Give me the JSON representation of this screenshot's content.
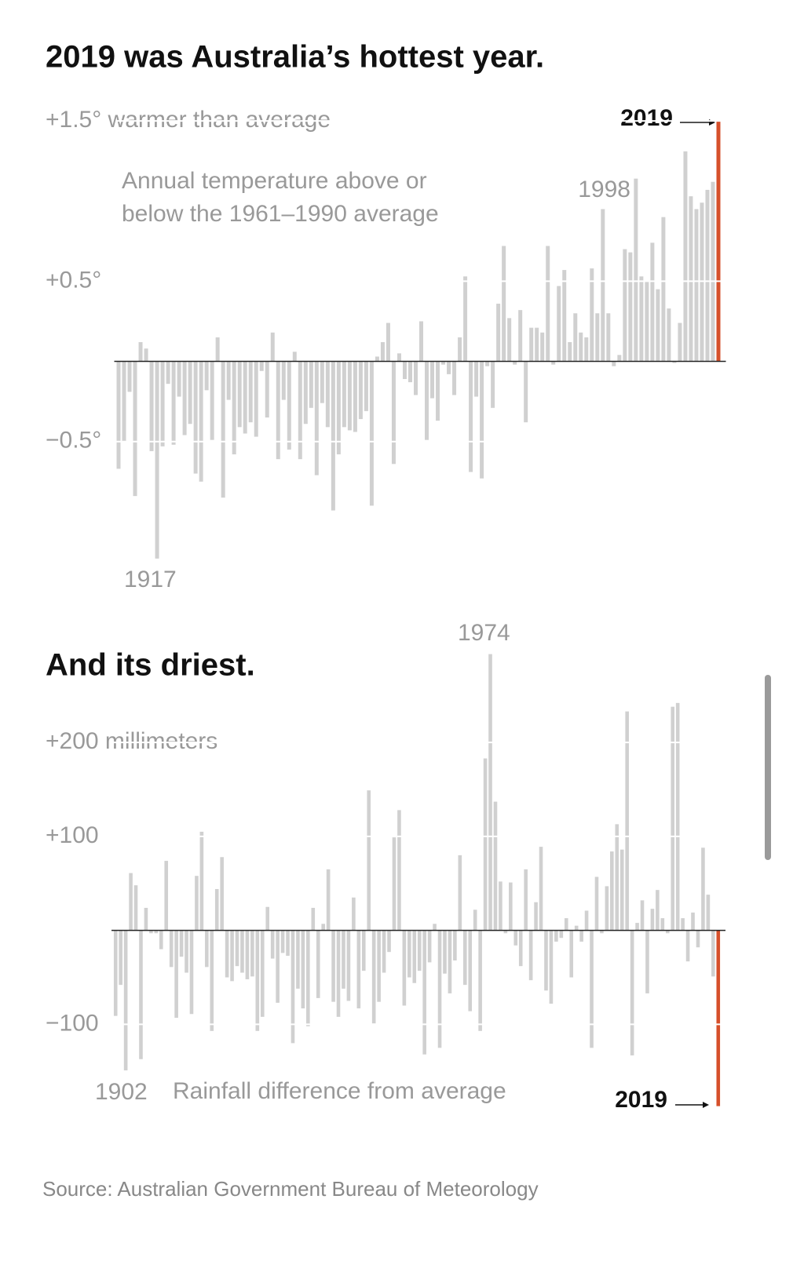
{
  "chart_data": [
    {
      "type": "bar",
      "title": "2019 was Australia’s hottest year.",
      "note": [
        "Annual temperature above or",
        "below the 1961–1990 average"
      ],
      "annotations": [
        "1998",
        "1917"
      ],
      "highlight": {
        "x": 2019,
        "label": "2019",
        "color": "#d6502b"
      },
      "color": "#d0d0d0",
      "x": [
        1910,
        1911,
        1912,
        1913,
        1914,
        1915,
        1916,
        1917,
        1918,
        1919,
        1920,
        1921,
        1922,
        1923,
        1924,
        1925,
        1926,
        1927,
        1928,
        1929,
        1930,
        1931,
        1932,
        1933,
        1934,
        1935,
        1936,
        1937,
        1938,
        1939,
        1940,
        1941,
        1942,
        1943,
        1944,
        1945,
        1946,
        1947,
        1948,
        1949,
        1950,
        1951,
        1952,
        1953,
        1954,
        1955,
        1956,
        1957,
        1958,
        1959,
        1960,
        1961,
        1962,
        1963,
        1964,
        1965,
        1966,
        1967,
        1968,
        1969,
        1970,
        1971,
        1972,
        1973,
        1974,
        1975,
        1976,
        1977,
        1978,
        1979,
        1980,
        1981,
        1982,
        1983,
        1984,
        1985,
        1986,
        1987,
        1988,
        1989,
        1990,
        1991,
        1992,
        1993,
        1994,
        1995,
        1996,
        1997,
        1998,
        1999,
        2000,
        2001,
        2002,
        2003,
        2004,
        2005,
        2006,
        2007,
        2008,
        2009,
        2010,
        2011,
        2012,
        2013,
        2014,
        2015,
        2016,
        2017,
        2018,
        2019
      ],
      "values": [
        -0.67,
        -0.5,
        -0.19,
        -0.84,
        0.12,
        0.08,
        -0.56,
        -1.23,
        -0.53,
        -0.14,
        -0.52,
        -0.22,
        -0.46,
        -0.39,
        -0.7,
        -0.75,
        -0.18,
        -0.49,
        0.15,
        -0.85,
        -0.24,
        -0.58,
        -0.41,
        -0.45,
        -0.38,
        -0.47,
        -0.06,
        -0.35,
        0.18,
        -0.61,
        -0.24,
        -0.55,
        0.06,
        -0.61,
        -0.39,
        -0.29,
        -0.71,
        -0.26,
        -0.41,
        -0.93,
        -0.58,
        -0.41,
        -0.43,
        -0.44,
        -0.36,
        -0.31,
        -0.9,
        0.03,
        0.12,
        0.24,
        -0.64,
        0.05,
        -0.11,
        -0.13,
        -0.21,
        0.25,
        -0.49,
        -0.23,
        -0.37,
        -0.02,
        -0.08,
        -0.21,
        0.15,
        0.53,
        -0.69,
        -0.22,
        -0.73,
        -0.03,
        -0.29,
        0.36,
        0.72,
        0.27,
        -0.02,
        0.32,
        -0.38,
        0.21,
        0.21,
        0.18,
        0.72,
        -0.02,
        0.47,
        0.57,
        0.12,
        0.3,
        0.18,
        0.15,
        0.58,
        0.3,
        0.95,
        0.3,
        -0.03,
        0.04,
        0.7,
        0.68,
        1.14,
        0.53,
        0.5,
        0.74,
        0.45,
        0.9,
        0.33,
        -0.01,
        0.24,
        1.31,
        1.03,
        0.95,
        0.99,
        1.07,
        1.12,
        1.5
      ],
      "xlim": [
        1909.5,
        2019.5
      ],
      "ylim": [
        -1.27,
        1.52
      ],
      "yticks": [
        {
          "value": 1.5,
          "label": "+1.5° warmer than average"
        },
        {
          "value": 0.5,
          "label": "+0.5°"
        },
        {
          "value": -0.5,
          "label": "−0.5°"
        }
      ],
      "grid": true
    },
    {
      "type": "bar",
      "title": "And its driest.",
      "note": [
        "Rainfall difference from average"
      ],
      "annotations": [
        "1974",
        "1902"
      ],
      "highlight": {
        "x": 2019,
        "label": "2019",
        "color": "#d6502b"
      },
      "color": "#d0d0d0",
      "x": [
        1900,
        1901,
        1902,
        1903,
        1904,
        1905,
        1906,
        1907,
        1908,
        1909,
        1910,
        1911,
        1912,
        1913,
        1914,
        1915,
        1916,
        1917,
        1918,
        1919,
        1920,
        1921,
        1922,
        1923,
        1924,
        1925,
        1926,
        1927,
        1928,
        1929,
        1930,
        1931,
        1932,
        1933,
        1934,
        1935,
        1936,
        1937,
        1938,
        1939,
        1940,
        1941,
        1942,
        1943,
        1944,
        1945,
        1946,
        1947,
        1948,
        1949,
        1950,
        1951,
        1952,
        1953,
        1954,
        1955,
        1956,
        1957,
        1958,
        1959,
        1960,
        1961,
        1962,
        1963,
        1964,
        1965,
        1966,
        1967,
        1968,
        1969,
        1970,
        1971,
        1972,
        1973,
        1974,
        1975,
        1976,
        1977,
        1978,
        1979,
        1980,
        1981,
        1982,
        1983,
        1984,
        1985,
        1986,
        1987,
        1988,
        1989,
        1990,
        1991,
        1992,
        1993,
        1994,
        1995,
        1996,
        1997,
        1998,
        1999,
        2000,
        2001,
        2002,
        2003,
        2004,
        2005,
        2006,
        2007,
        2008,
        2009,
        2010,
        2011,
        2012,
        2013,
        2014,
        2015,
        2016,
        2017,
        2018,
        2019
      ],
      "values": [
        -91,
        -58,
        -149,
        61,
        48,
        -137,
        24,
        -3,
        -3,
        -20,
        74,
        -39,
        -93,
        -28,
        -45,
        -89,
        58,
        105,
        -39,
        -107,
        44,
        78,
        -50,
        -54,
        -38,
        -45,
        -52,
        -49,
        -107,
        -92,
        25,
        -30,
        -77,
        -24,
        -27,
        -120,
        -62,
        -83,
        -102,
        24,
        -72,
        7,
        65,
        -76,
        -92,
        -62,
        -75,
        35,
        -83,
        -43,
        149,
        -99,
        -76,
        -45,
        -23,
        99,
        128,
        -80,
        -50,
        -56,
        -43,
        -132,
        -34,
        7,
        -125,
        -46,
        -67,
        -32,
        80,
        -58,
        -86,
        22,
        -107,
        183,
        294,
        137,
        52,
        -3,
        51,
        -16,
        -38,
        65,
        -53,
        30,
        89,
        -64,
        -78,
        -12,
        -8,
        13,
        -50,
        5,
        -12,
        21,
        -125,
        57,
        -3,
        47,
        84,
        113,
        86,
        233,
        -133,
        8,
        32,
        -67,
        23,
        43,
        13,
        -3,
        238,
        242,
        13,
        -33,
        19,
        -18,
        88,
        38,
        -49,
        -187
      ],
      "xlim": [
        1899.5,
        2019.5
      ],
      "ylim": [
        -189,
        297
      ],
      "yticks": [
        {
          "value": 200,
          "label": "+200 millimeters"
        },
        {
          "value": 100,
          "label": "+100"
        },
        {
          "value": -100,
          "label": "−100"
        }
      ],
      "grid": true
    }
  ],
  "source": "Source: Australian Government Bureau of Meteorology"
}
